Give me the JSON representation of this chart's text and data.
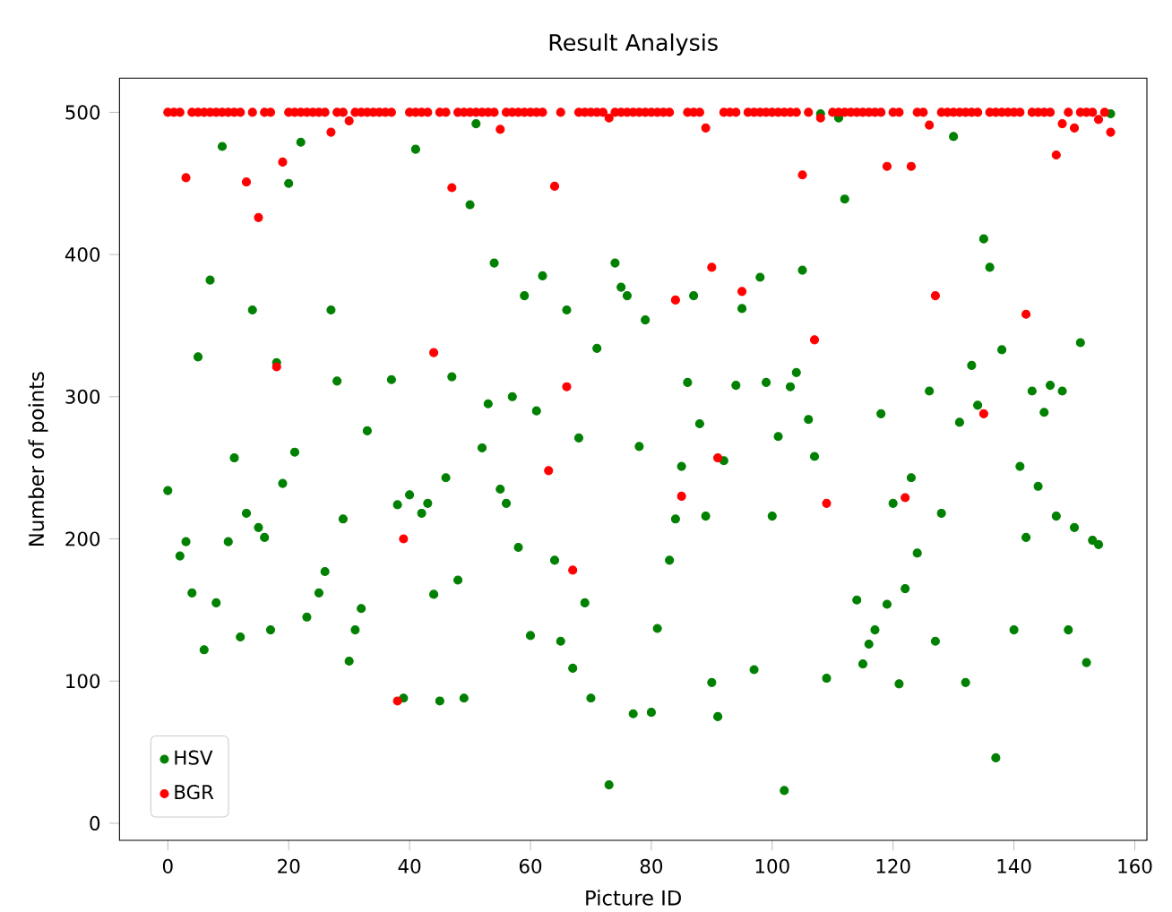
{
  "chart_data": {
    "type": "scatter",
    "title": "Result Analysis",
    "xlabel": "Picture ID",
    "ylabel": "Number of points",
    "xlim": [
      -8,
      162
    ],
    "ylim": [
      -12,
      524
    ],
    "xticks": [
      0,
      20,
      40,
      60,
      80,
      100,
      120,
      140,
      160
    ],
    "yticks": [
      0,
      100,
      200,
      300,
      400,
      500
    ],
    "legend": "bottom left",
    "marker": "circle",
    "series": [
      {
        "name": "HSV",
        "color": "#008000",
        "x": [
          0,
          2,
          3,
          4,
          5,
          6,
          7,
          8,
          9,
          10,
          11,
          12,
          13,
          14,
          15,
          16,
          17,
          18,
          19,
          20,
          21,
          22,
          23,
          25,
          26,
          27,
          28,
          29,
          30,
          31,
          32,
          33,
          37,
          38,
          39,
          40,
          41,
          42,
          43,
          44,
          45,
          46,
          47,
          48,
          49,
          50,
          51,
          52,
          53,
          54,
          55,
          56,
          57,
          58,
          59,
          60,
          61,
          62,
          64,
          65,
          66,
          67,
          68,
          69,
          70,
          71,
          73,
          74,
          75,
          76,
          77,
          78,
          79,
          80,
          81,
          83,
          84,
          85,
          86,
          87,
          88,
          89,
          90,
          91,
          92,
          94,
          95,
          97,
          98,
          99,
          100,
          101,
          102,
          103,
          104,
          105,
          106,
          107,
          108,
          109,
          111,
          112,
          114,
          115,
          116,
          117,
          118,
          119,
          120,
          121,
          122,
          123,
          124,
          126,
          127,
          128,
          130,
          131,
          132,
          133,
          134,
          135,
          136,
          137,
          138,
          140,
          141,
          142,
          143,
          144,
          145,
          146,
          147,
          148,
          149,
          150,
          151,
          152,
          153,
          154,
          156
        ],
        "values": [
          234,
          188,
          198,
          162,
          328,
          122,
          382,
          155,
          476,
          198,
          257,
          131,
          218,
          361,
          208,
          201,
          136,
          324,
          239,
          450,
          261,
          479,
          145,
          162,
          177,
          361,
          311,
          214,
          114,
          136,
          151,
          276,
          312,
          224,
          88,
          231,
          474,
          218,
          225,
          161,
          86,
          243,
          314,
          171,
          88,
          435,
          492,
          264,
          295,
          394,
          235,
          225,
          300,
          194,
          371,
          132,
          290,
          385,
          185,
          128,
          361,
          109,
          271,
          155,
          88,
          334,
          27,
          394,
          377,
          371,
          77,
          265,
          354,
          78,
          137,
          185,
          214,
          251,
          310,
          371,
          281,
          216,
          99,
          75,
          255,
          308,
          362,
          108,
          384,
          310,
          216,
          272,
          23,
          307,
          317,
          389,
          284,
          258,
          499,
          102,
          496,
          439,
          157,
          112,
          126,
          136,
          288,
          154,
          225,
          98,
          165,
          243,
          190,
          304,
          128,
          218,
          483,
          282,
          99,
          322,
          294,
          411,
          391,
          46,
          333,
          136,
          251,
          201,
          304,
          237,
          289,
          308,
          216,
          304,
          136,
          208,
          338,
          113,
          199,
          196,
          499
        ]
      },
      {
        "name": "BGR",
        "color": "#ff0000",
        "x": [
          0,
          1,
          2,
          3,
          4,
          5,
          6,
          7,
          8,
          9,
          10,
          11,
          12,
          13,
          14,
          15,
          16,
          17,
          18,
          19,
          20,
          21,
          22,
          23,
          24,
          25,
          26,
          27,
          28,
          29,
          30,
          31,
          32,
          33,
          34,
          35,
          36,
          37,
          38,
          39,
          40,
          41,
          42,
          43,
          44,
          45,
          46,
          47,
          48,
          49,
          50,
          51,
          52,
          53,
          54,
          55,
          56,
          57,
          58,
          59,
          60,
          61,
          62,
          63,
          64,
          65,
          66,
          67,
          68,
          69,
          70,
          71,
          72,
          73,
          74,
          75,
          76,
          77,
          78,
          79,
          80,
          81,
          82,
          83,
          84,
          85,
          86,
          87,
          88,
          89,
          90,
          91,
          92,
          93,
          94,
          95,
          96,
          97,
          98,
          99,
          100,
          101,
          102,
          103,
          104,
          105,
          106,
          107,
          108,
          109,
          110,
          111,
          112,
          113,
          114,
          115,
          116,
          117,
          118,
          119,
          120,
          121,
          122,
          123,
          124,
          125,
          126,
          127,
          128,
          129,
          130,
          131,
          132,
          133,
          134,
          135,
          136,
          137,
          138,
          139,
          140,
          141,
          142,
          143,
          144,
          145,
          146,
          147,
          148,
          149,
          150,
          151,
          152,
          153,
          154,
          155,
          156
        ],
        "values": [
          500,
          500,
          500,
          454,
          500,
          500,
          500,
          500,
          500,
          500,
          500,
          500,
          500,
          451,
          500,
          426,
          500,
          500,
          321,
          465,
          500,
          500,
          500,
          500,
          500,
          500,
          500,
          486,
          500,
          500,
          494,
          500,
          500,
          500,
          500,
          500,
          500,
          500,
          86,
          200,
          500,
          500,
          500,
          500,
          331,
          500,
          500,
          447,
          500,
          500,
          500,
          500,
          500,
          500,
          500,
          488,
          500,
          500,
          500,
          500,
          500,
          500,
          500,
          248,
          448,
          500,
          307,
          178,
          500,
          500,
          500,
          500,
          500,
          496,
          500,
          500,
          500,
          500,
          500,
          500,
          500,
          500,
          500,
          500,
          368,
          230,
          500,
          500,
          500,
          489,
          391,
          257,
          500,
          500,
          500,
          374,
          500,
          500,
          500,
          500,
          500,
          500,
          500,
          500,
          500,
          456,
          500,
          340,
          496,
          225,
          500,
          500,
          500,
          500,
          500,
          500,
          500,
          500,
          500,
          462,
          500,
          500,
          229,
          462,
          500,
          500,
          491,
          371,
          500,
          500,
          500,
          500,
          500,
          500,
          500,
          288,
          500,
          500,
          500,
          500,
          500,
          500,
          358,
          500,
          500,
          500,
          500,
          470,
          492,
          500,
          489,
          500,
          500,
          500,
          495,
          500,
          486
        ]
      }
    ]
  }
}
